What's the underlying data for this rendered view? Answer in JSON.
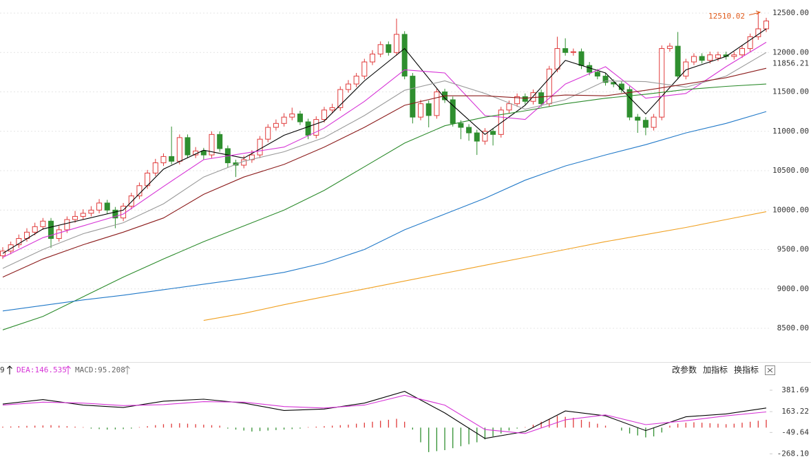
{
  "chart_data": [
    {
      "type": "candlestick",
      "ylim": [
        8081,
        12666
      ],
      "yticks": [
        {
          "value": 8500,
          "label": "8500.00"
        },
        {
          "value": 9000,
          "label": "9000.00"
        },
        {
          "value": 9500,
          "label": "9500.00"
        },
        {
          "value": 10000,
          "label": "10000.00"
        },
        {
          "value": 10500,
          "label": "10500.00"
        },
        {
          "value": 11000,
          "label": "11000.00"
        },
        {
          "value": 11500,
          "label": "11500.00"
        },
        {
          "value": 12000,
          "label": "12000.00"
        },
        {
          "value": 12500,
          "label": "12500.00"
        }
      ],
      "grid": true,
      "up_color": "#e03a3a",
      "down_color": "#2f8f2f",
      "open": [
        9420,
        9480,
        9560,
        9640,
        9720,
        9790,
        9860,
        9640,
        9750,
        9880,
        9920,
        9960,
        10000,
        10090,
        10000,
        9900,
        10050,
        10180,
        10310,
        10470,
        10600,
        10680,
        10620,
        10920,
        10700,
        10750,
        10700,
        10960,
        10780,
        10600,
        10570,
        10640,
        10700,
        10900,
        11050,
        11100,
        11180,
        11220,
        11120,
        10950,
        11150,
        11270,
        11300,
        11530,
        11600,
        11700,
        11880,
        11980,
        12100,
        12000,
        12230,
        11700,
        11180,
        11350,
        11200,
        11500,
        11400,
        11100,
        11050,
        10980,
        10875,
        11000,
        10960,
        11270,
        11350,
        11440,
        11380,
        11490,
        11350,
        11790,
        12050,
        12000,
        12010,
        11835,
        11750,
        11700,
        11620,
        11600,
        11530,
        11180,
        11140,
        11050,
        11180,
        12050,
        12080,
        11700,
        11880,
        11950,
        11900,
        11930,
        11970,
        11950,
        11970,
        12050,
        12200,
        12300
      ],
      "high": [
        9530,
        9600,
        9690,
        9770,
        9840,
        9900,
        9900,
        9800,
        9920,
        9990,
        10010,
        10050,
        10140,
        10130,
        10040,
        10090,
        10220,
        10350,
        10510,
        10650,
        10720,
        11060,
        10960,
        10960,
        10800,
        10790,
        11000,
        11000,
        10820,
        10640,
        10690,
        10760,
        10940,
        11090,
        11150,
        11230,
        11300,
        11260,
        11160,
        11190,
        11310,
        11350,
        11570,
        11650,
        11740,
        11920,
        12030,
        12140,
        12140,
        12430,
        12270,
        11740,
        11400,
        11390,
        11540,
        11540,
        11440,
        11140,
        11090,
        11020,
        11040,
        11040,
        11310,
        11390,
        11480,
        11480,
        11530,
        11530,
        11830,
        12200,
        12180,
        12050,
        12050,
        11880,
        11790,
        11740,
        11660,
        11640,
        11570,
        11220,
        11180,
        11220,
        12090,
        12120,
        12260,
        11920,
        11990,
        11990,
        12010,
        12010,
        12010,
        12010,
        12090,
        12240,
        12510.02,
        12440
      ],
      "low": [
        9380,
        9440,
        9520,
        9600,
        9680,
        9750,
        9520,
        9600,
        9710,
        9840,
        9880,
        9920,
        9960,
        9950,
        9770,
        9860,
        10010,
        10140,
        10270,
        10430,
        10560,
        10580,
        10580,
        10660,
        10660,
        10640,
        10660,
        10740,
        10540,
        10420,
        10530,
        10600,
        10660,
        10860,
        11010,
        11060,
        11140,
        11080,
        10900,
        10910,
        11110,
        11230,
        11260,
        11490,
        11560,
        11660,
        11840,
        11940,
        11960,
        11960,
        11660,
        11100,
        11140,
        11050,
        11160,
        11360,
        11060,
        10900,
        10880,
        10700,
        10830,
        10820,
        10920,
        11230,
        11310,
        11340,
        11340,
        11310,
        11310,
        11750,
        11960,
        11960,
        11790,
        11710,
        11660,
        11580,
        11560,
        11490,
        11140,
        10980,
        10950,
        11010,
        11140,
        12010,
        11660,
        11660,
        11840,
        11860,
        11860,
        11890,
        11910,
        11910,
        11930,
        12010,
        12160,
        12260
      ],
      "close": [
        9480,
        9560,
        9640,
        9720,
        9790,
        9860,
        9640,
        9750,
        9880,
        9920,
        9960,
        10000,
        10090,
        10000,
        9900,
        10050,
        10180,
        10310,
        10470,
        10600,
        10680,
        10620,
        10920,
        10700,
        10750,
        10700,
        10960,
        10780,
        10600,
        10570,
        10640,
        10700,
        10900,
        11050,
        11100,
        11180,
        11220,
        11120,
        10950,
        11150,
        11270,
        11300,
        11530,
        11600,
        11700,
        11880,
        11980,
        12100,
        12000,
        12230,
        11700,
        11180,
        11350,
        11200,
        11500,
        11400,
        11100,
        11050,
        10980,
        10875,
        11000,
        10960,
        11270,
        11350,
        11440,
        11380,
        11490,
        11350,
        11790,
        12050,
        12000,
        12010,
        11835,
        11750,
        11700,
        11620,
        11600,
        11530,
        11180,
        11140,
        11050,
        11180,
        12050,
        12080,
        11700,
        11880,
        11950,
        11900,
        11970,
        11970,
        11950,
        11970,
        12050,
        12200,
        12300,
        12400
      ],
      "series": [
        {
          "color": "#000000",
          "values": [
            9450,
            9760,
            9880,
            10000,
            10520,
            10760,
            10660,
            10950,
            11130,
            11640,
            12050,
            11420,
            10960,
            11330,
            11900,
            11740,
            11220,
            11780,
            11950,
            12300
          ]
        },
        {
          "color": "#d633d6",
          "values": [
            9400,
            9650,
            9800,
            9950,
            10300,
            10640,
            10720,
            10800,
            11040,
            11380,
            11780,
            11740,
            11200,
            11150,
            11600,
            11820,
            11420,
            11480,
            11820,
            12130
          ]
        },
        {
          "color": "#999999",
          "values": [
            9260,
            9500,
            9700,
            9840,
            10080,
            10420,
            10620,
            10740,
            10920,
            11200,
            11520,
            11640,
            11480,
            11280,
            11400,
            11640,
            11630,
            11560,
            11700,
            12000
          ]
        },
        {
          "color": "#8b1a1a",
          "values": [
            9150,
            9380,
            9560,
            9720,
            9900,
            10200,
            10420,
            10580,
            10800,
            11050,
            11330,
            11450,
            11450,
            11420,
            11460,
            11450,
            11520,
            11600,
            11680,
            11800
          ]
        },
        {
          "color": "#2a8a2a",
          "values": [
            8480,
            8650,
            8900,
            9150,
            9380,
            9600,
            9800,
            10000,
            10250,
            10550,
            10850,
            11070,
            11180,
            11260,
            11350,
            11420,
            11470,
            11530,
            11570,
            11600
          ]
        },
        {
          "color": "#1f78c8",
          "values": [
            8720,
            8790,
            8860,
            8920,
            8990,
            9060,
            9130,
            9210,
            9330,
            9500,
            9750,
            9950,
            10150,
            10380,
            10560,
            10700,
            10830,
            10980,
            11100,
            11250
          ]
        },
        {
          "color": "#f0a020",
          "values": [
            null,
            null,
            null,
            null,
            null,
            8600,
            8690,
            8800,
            8900,
            9000,
            9100,
            9200,
            9300,
            9400,
            9500,
            9600,
            9690,
            9780,
            9880,
            9980
          ]
        }
      ],
      "high_marker": {
        "value": 12510.02,
        "color": "#e05a1a"
      },
      "last_price": 11856.21
    },
    {
      "type": "macd",
      "ylim": [
        -300,
        515
      ],
      "yticks": [
        381.69,
        163.22,
        -49.64,
        {
          "value": -268.1,
          "label": "-268.10"
        }
      ],
      "dif_fragment": "9",
      "dea_label": "DEA:146.535",
      "macd_label": "MACD:95.208",
      "dif": {
        "color": "#000000",
        "values": [
          240,
          286,
          230,
          205,
          270,
          290,
          250,
          175,
          190,
          250,
          370,
          150,
          -110,
          -40,
          170,
          120,
          -30,
          110,
          140,
          200
        ]
      },
      "dea": {
        "color": "#d633d6",
        "values": [
          230,
          260,
          250,
          225,
          235,
          265,
          260,
          215,
          200,
          230,
          330,
          230,
          -20,
          -60,
          80,
          130,
          30,
          70,
          120,
          160
        ]
      },
      "histogram": {
        "up_color": "#e03a3a",
        "down_color": "#2f8f2f",
        "values": [
          10,
          12,
          15,
          18,
          20,
          22,
          25,
          20,
          15,
          10,
          5,
          -10,
          -15,
          -20,
          -18,
          -15,
          -10,
          5,
          15,
          25,
          35,
          40,
          45,
          40,
          35,
          30,
          25,
          20,
          -10,
          -20,
          -30,
          -40,
          -35,
          -30,
          -25,
          -20,
          -15,
          -10,
          5,
          10,
          15,
          20,
          25,
          30,
          40,
          50,
          60,
          70,
          80,
          90,
          60,
          -20,
          -150,
          -250,
          -240,
          -230,
          -210,
          -190,
          -170,
          -150,
          -120,
          -90,
          -60,
          -30,
          -10,
          5,
          30,
          60,
          90,
          120,
          110,
          100,
          80,
          60,
          40,
          20,
          0,
          -30,
          -60,
          -80,
          -100,
          -90,
          -50,
          20,
          40,
          50,
          55,
          50,
          45,
          40,
          35,
          40,
          50,
          60,
          70,
          80
        ]
      },
      "buttons": [
        "改参数",
        "加指标",
        "换指标"
      ]
    }
  ]
}
